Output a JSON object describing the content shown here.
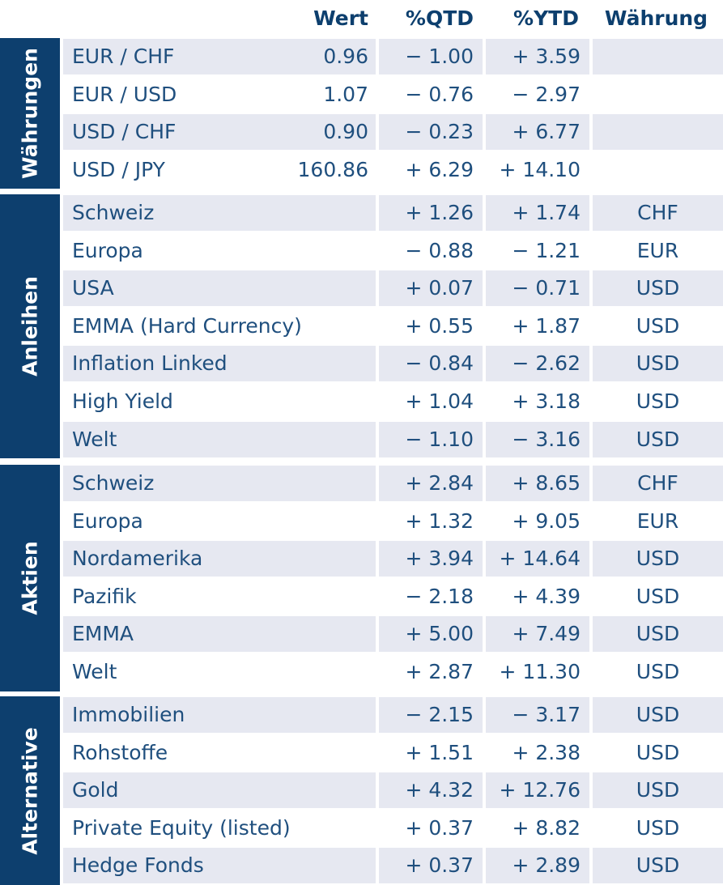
{
  "header": {
    "wert": "Wert",
    "qtd": "%QTD",
    "ytd": "%YTD",
    "currency": "Währung"
  },
  "sections": [
    {
      "label": "Währungen",
      "rows": [
        {
          "name": "EUR / CHF",
          "value": "0.96",
          "qtd": "− 1.00",
          "ytd": "+ 3.59",
          "currency": ""
        },
        {
          "name": "EUR / USD",
          "value": "1.07",
          "qtd": "− 0.76",
          "ytd": "− 2.97",
          "currency": ""
        },
        {
          "name": "USD / CHF",
          "value": "0.90",
          "qtd": "− 0.23",
          "ytd": "+ 6.77",
          "currency": ""
        },
        {
          "name": "USD / JPY",
          "value": "160.86",
          "qtd": "+ 6.29",
          "ytd": "+ 14.10",
          "currency": ""
        }
      ]
    },
    {
      "label": "Anleihen",
      "rows": [
        {
          "name": "Schweiz",
          "value": "",
          "qtd": "+ 1.26",
          "ytd": "+ 1.74",
          "currency": "CHF"
        },
        {
          "name": "Europa",
          "value": "",
          "qtd": "− 0.88",
          "ytd": "− 1.21",
          "currency": "EUR"
        },
        {
          "name": "USA",
          "value": "",
          "qtd": "+ 0.07",
          "ytd": "− 0.71",
          "currency": "USD"
        },
        {
          "name": "EMMA (Hard Currency)",
          "value": "",
          "qtd": "+ 0.55",
          "ytd": "+ 1.87",
          "currency": "USD"
        },
        {
          "name": "Inflation Linked",
          "value": "",
          "qtd": "− 0.84",
          "ytd": "− 2.62",
          "currency": "USD"
        },
        {
          "name": "High Yield",
          "value": "",
          "qtd": "+ 1.04",
          "ytd": "+ 3.18",
          "currency": "USD"
        },
        {
          "name": "Welt",
          "value": "",
          "qtd": "− 1.10",
          "ytd": "− 3.16",
          "currency": "USD"
        }
      ]
    },
    {
      "label": "Aktien",
      "rows": [
        {
          "name": "Schweiz",
          "value": "",
          "qtd": "+ 2.84",
          "ytd": "+ 8.65",
          "currency": "CHF"
        },
        {
          "name": "Europa",
          "value": "",
          "qtd": "+ 1.32",
          "ytd": "+ 9.05",
          "currency": "EUR"
        },
        {
          "name": "Nordamerika",
          "value": "",
          "qtd": "+ 3.94",
          "ytd": "+ 14.64",
          "currency": "USD"
        },
        {
          "name": "Pazifik",
          "value": "",
          "qtd": "− 2.18",
          "ytd": "+ 4.39",
          "currency": "USD"
        },
        {
          "name": "EMMA",
          "value": "",
          "qtd": "+ 5.00",
          "ytd": "+ 7.49",
          "currency": "USD"
        },
        {
          "name": "Welt",
          "value": "",
          "qtd": "+ 2.87",
          "ytd": "+ 11.30",
          "currency": "USD"
        }
      ]
    },
    {
      "label": "Alternative",
      "rows": [
        {
          "name": "Immobilien",
          "value": "",
          "qtd": "− 2.15",
          "ytd": "− 3.17",
          "currency": "USD"
        },
        {
          "name": "Rohstoffe",
          "value": "",
          "qtd": "+ 1.51",
          "ytd": "+ 2.38",
          "currency": "USD"
        },
        {
          "name": "Gold",
          "value": "",
          "qtd": "+ 4.32",
          "ytd": "+ 12.76",
          "currency": "USD"
        },
        {
          "name": "Private Equity (listed)",
          "value": "",
          "qtd": "+ 0.37",
          "ytd": "+ 8.82",
          "currency": "USD"
        },
        {
          "name": "Hedge Fonds",
          "value": "",
          "qtd": "+ 0.37",
          "ytd": "+ 2.89",
          "currency": "USD"
        }
      ]
    }
  ]
}
